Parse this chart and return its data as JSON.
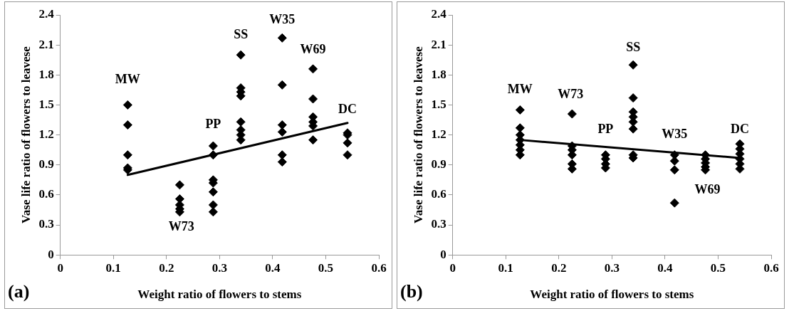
{
  "chart_data": [
    {
      "type": "scatter",
      "xlabel": "Weight ratio of flowers to stems",
      "ylabel": "Vase life ratio of flowers to leavese",
      "xlim": [
        0,
        0.6
      ],
      "ylim": [
        0,
        2.4
      ],
      "xticks": [
        0,
        0.1,
        0.2,
        0.3,
        0.4,
        0.5,
        0.6
      ],
      "yticks": [
        0,
        0.3,
        0.6,
        0.9,
        1.2,
        1.5,
        1.8,
        2.1,
        2.4
      ],
      "grid": false,
      "marker": "diamond",
      "series": [
        {
          "type": "scatter",
          "color": "#000000",
          "x": [
            0.127,
            0.127,
            0.127,
            0.127,
            0.127,
            0.225,
            0.225,
            0.225,
            0.225,
            0.225,
            0.288,
            0.288,
            0.288,
            0.288,
            0.288,
            0.288,
            0.288,
            0.34,
            0.34,
            0.34,
            0.34,
            0.34,
            0.34,
            0.34,
            0.34,
            0.418,
            0.418,
            0.418,
            0.418,
            0.418,
            0.418,
            0.476,
            0.476,
            0.476,
            0.476,
            0.476,
            0.476,
            0.541,
            0.541,
            0.541,
            0.541
          ],
          "values": [
            1.5,
            1.3,
            1.0,
            0.87,
            0.85,
            0.7,
            0.56,
            0.5,
            0.46,
            0.43,
            1.09,
            1.0,
            0.75,
            0.72,
            0.63,
            0.5,
            0.43,
            2.0,
            1.67,
            1.63,
            1.59,
            1.33,
            1.25,
            1.2,
            1.15,
            2.17,
            1.7,
            1.3,
            1.23,
            1.0,
            0.93,
            1.86,
            1.56,
            1.38,
            1.33,
            1.29,
            1.15,
            1.22,
            1.2,
            1.12,
            1.0
          ]
        },
        {
          "type": "line",
          "color": "#000000",
          "marker": "none",
          "x": [
            0.127,
            0.541
          ],
          "values": [
            0.8,
            1.32
          ]
        }
      ],
      "annotations": [
        "MW",
        "W73",
        "PP",
        "SS",
        "W35",
        "W69",
        "DC",
        "(a)"
      ]
    },
    {
      "type": "scatter",
      "xlabel": "Weight ratio of flowers to stems",
      "ylabel": "Vase life ratio of flowers to leavese",
      "xlim": [
        0,
        0.6
      ],
      "ylim": [
        0,
        2.4
      ],
      "xticks": [
        0,
        0.1,
        0.2,
        0.3,
        0.4,
        0.5,
        0.6
      ],
      "yticks": [
        0,
        0.3,
        0.6,
        0.9,
        1.2,
        1.5,
        1.8,
        2.1,
        2.4
      ],
      "grid": false,
      "marker": "diamond",
      "series": [
        {
          "type": "scatter",
          "color": "#000000",
          "x": [
            0.127,
            0.127,
            0.127,
            0.127,
            0.127,
            0.127,
            0.127,
            0.225,
            0.225,
            0.225,
            0.225,
            0.225,
            0.225,
            0.288,
            0.288,
            0.288,
            0.288,
            0.34,
            0.34,
            0.34,
            0.34,
            0.34,
            0.34,
            0.34,
            0.34,
            0.418,
            0.418,
            0.418,
            0.418,
            0.476,
            0.476,
            0.476,
            0.476,
            0.476,
            0.541,
            0.541,
            0.541,
            0.541,
            0.541,
            0.541
          ],
          "values": [
            1.45,
            1.27,
            1.2,
            1.15,
            1.1,
            1.05,
            1.0,
            1.41,
            1.09,
            1.05,
            1.0,
            0.91,
            0.86,
            1.0,
            0.96,
            0.91,
            0.87,
            1.9,
            1.57,
            1.43,
            1.38,
            1.33,
            1.26,
            1.0,
            0.97,
            1.0,
            0.94,
            0.85,
            0.52,
            1.0,
            0.96,
            0.92,
            0.88,
            0.85,
            1.11,
            1.06,
            1.01,
            0.96,
            0.91,
            0.86
          ]
        },
        {
          "type": "line",
          "color": "#000000",
          "marker": "none",
          "x": [
            0.127,
            0.541
          ],
          "values": [
            1.15,
            0.97
          ]
        }
      ],
      "annotations": [
        "MW",
        "W73",
        "PP",
        "SS",
        "W35",
        "W69",
        "DC",
        "(b)"
      ]
    }
  ]
}
